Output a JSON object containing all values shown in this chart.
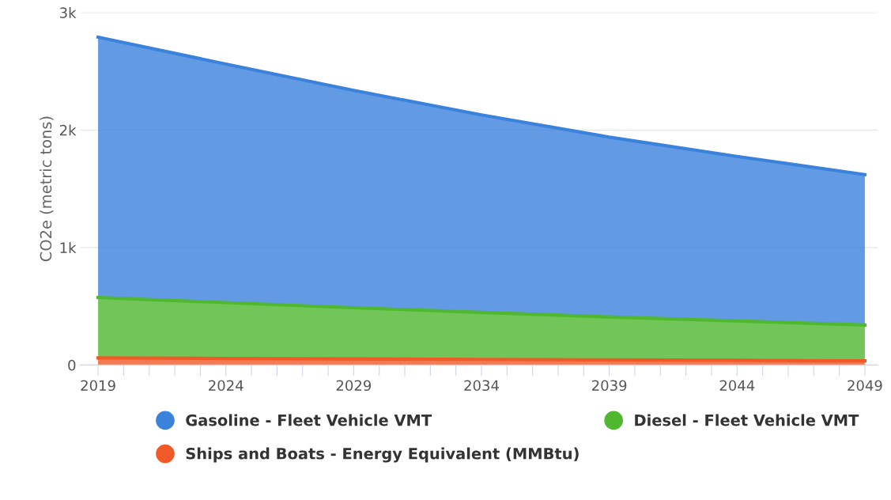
{
  "chart_data": {
    "type": "area",
    "stacked": true,
    "ylabel": "CO2e (metric tons)",
    "x": [
      2019,
      2024,
      2029,
      2034,
      2039,
      2044,
      2049
    ],
    "series": [
      {
        "name": "Ships and Boats - Energy Equivalent (MMBtu)",
        "color": "#f05a28",
        "values": [
          60,
          56,
          52,
          48,
          44,
          40,
          35
        ]
      },
      {
        "name": "Diesel - Fleet Vehicle VMT",
        "color": "#4fb82f",
        "values": [
          515,
          475,
          435,
          400,
          365,
          335,
          305
        ]
      },
      {
        "name": "Gasoline - Fleet Vehicle VMT",
        "color": "#3b82dc",
        "values": [
          2215,
          2030,
          1850,
          1680,
          1530,
          1400,
          1280
        ]
      }
    ],
    "xlim": [
      2018.3,
      2049.5
    ],
    "xticks": [
      2019,
      {
        "value": 2020,
        "label": null
      },
      {
        "value": 2021,
        "label": null
      },
      {
        "value": 2022,
        "label": null
      },
      {
        "value": 2023,
        "label": null
      },
      2024,
      {
        "value": 2025,
        "label": null
      },
      {
        "value": 2026,
        "label": null
      },
      {
        "value": 2027,
        "label": null
      },
      {
        "value": 2028,
        "label": null
      },
      2029,
      {
        "value": 2030,
        "label": null
      },
      {
        "value": 2031,
        "label": null
      },
      {
        "value": 2032,
        "label": null
      },
      {
        "value": 2033,
        "label": null
      },
      2034,
      {
        "value": 2035,
        "label": null
      },
      {
        "value": 2036,
        "label": null
      },
      {
        "value": 2037,
        "label": null
      },
      {
        "value": 2038,
        "label": null
      },
      2039,
      {
        "value": 2040,
        "label": null
      },
      {
        "value": 2041,
        "label": null
      },
      {
        "value": 2042,
        "label": null
      },
      {
        "value": 2043,
        "label": null
      },
      2044,
      {
        "value": 2045,
        "label": null
      },
      {
        "value": 2046,
        "label": null
      },
      {
        "value": 2047,
        "label": null
      },
      {
        "value": 2048,
        "label": null
      },
      2049
    ],
    "ylim": [
      0,
      3000
    ],
    "yticks": [
      {
        "value": 0,
        "label": "0"
      },
      {
        "value": 1000,
        "label": "1k"
      },
      {
        "value": 2000,
        "label": "2k"
      },
      {
        "value": 3000,
        "label": "3k"
      }
    ],
    "grid": "y",
    "legend": "bottom"
  }
}
